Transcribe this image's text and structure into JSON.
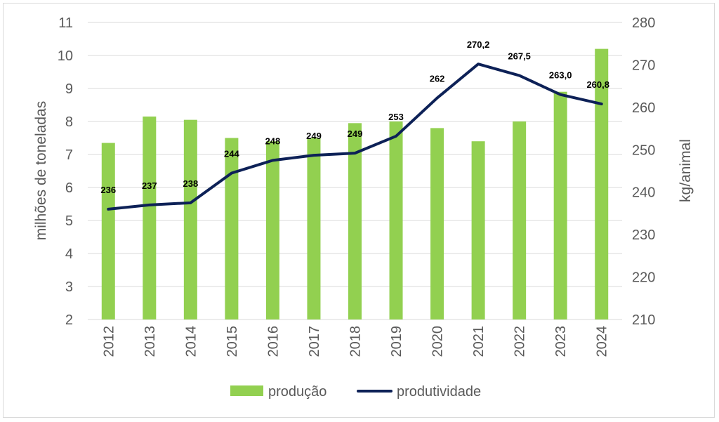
{
  "chart_data": {
    "type": "bar-line-combo",
    "categories": [
      "2012",
      "2013",
      "2014",
      "2015",
      "2016",
      "2017",
      "2018",
      "2019",
      "2020",
      "2021",
      "2022",
      "2023",
      "2024"
    ],
    "series": [
      {
        "name": "produção",
        "type": "bar",
        "axis": "left",
        "color": "#92d050",
        "values": [
          7.35,
          8.15,
          8.05,
          7.5,
          7.4,
          7.5,
          7.95,
          8.0,
          7.8,
          7.4,
          8.0,
          8.9,
          10.2
        ]
      },
      {
        "name": "produtividade",
        "type": "line",
        "axis": "right",
        "color": "#0d2157",
        "values": [
          236,
          237,
          237.5,
          244.5,
          247.5,
          248.7,
          249.2,
          253.2,
          262.2,
          270.2,
          267.5,
          263.0,
          260.8
        ],
        "labels": [
          "236",
          "237",
          "238",
          "244",
          "248",
          "249",
          "249",
          "253",
          "262",
          "270,2",
          "267,5",
          "263,0",
          "260,8"
        ]
      }
    ],
    "yleft": {
      "label": "milhões de toneladas",
      "min": 2,
      "max": 11,
      "ticks": [
        "2",
        "3",
        "4",
        "5",
        "6",
        "7",
        "8",
        "9",
        "10",
        "11"
      ]
    },
    "yright": {
      "label": "kg/animal",
      "min": 210,
      "max": 280,
      "ticks": [
        "210",
        "220",
        "230",
        "240",
        "250",
        "260",
        "270",
        "280"
      ]
    },
    "grid": true,
    "legend_position": "bottom"
  }
}
